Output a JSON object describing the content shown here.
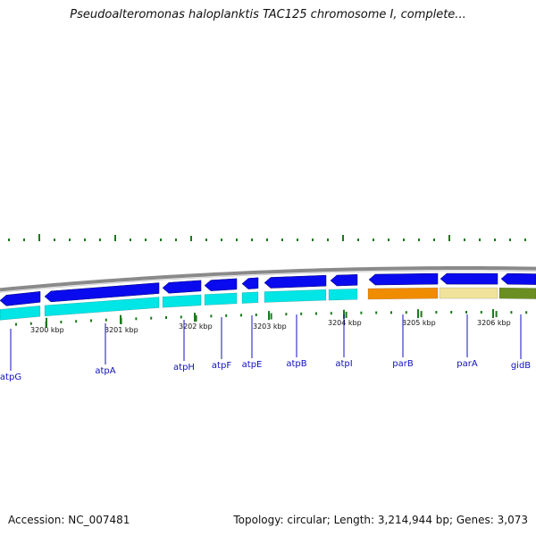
{
  "title": "Pseudoalteromonas haloplanktis TAC125 chromosome I, complete...",
  "footer": {
    "accession": "Accession: NC_007481",
    "summary": "Topology: circular; Length: 3,214,944 bp; Genes: 3,073"
  },
  "colors": {
    "backbone": "#8a8a8a",
    "forward_gene": "#0a0aee",
    "forward_cds": "#00e5e5",
    "parB": "#f08c00",
    "parA": "#f0e29a",
    "gidB": "#6b8e23",
    "gc_skew": "#1a7a1a",
    "label": "#1010c0"
  },
  "ticks": [
    {
      "label": "3200 kbp",
      "pos": 3200
    },
    {
      "label": "3201 kbp",
      "pos": 3201
    },
    {
      "label": "3202 kbp",
      "pos": 3202
    },
    {
      "label": "3203 kbp",
      "pos": 3203
    },
    {
      "label": "3204 kbp",
      "pos": 3204
    },
    {
      "label": "3205 kbp",
      "pos": 3205
    },
    {
      "label": "3206 kbp",
      "pos": 3206
    }
  ],
  "genes": [
    {
      "name": "atpG"
    },
    {
      "name": "atpA"
    },
    {
      "name": "atpH"
    },
    {
      "name": "atpF"
    },
    {
      "name": "atpE"
    },
    {
      "name": "atpB"
    },
    {
      "name": "atpI"
    },
    {
      "name": "parB"
    },
    {
      "name": "parA"
    },
    {
      "name": "gidB"
    }
  ]
}
